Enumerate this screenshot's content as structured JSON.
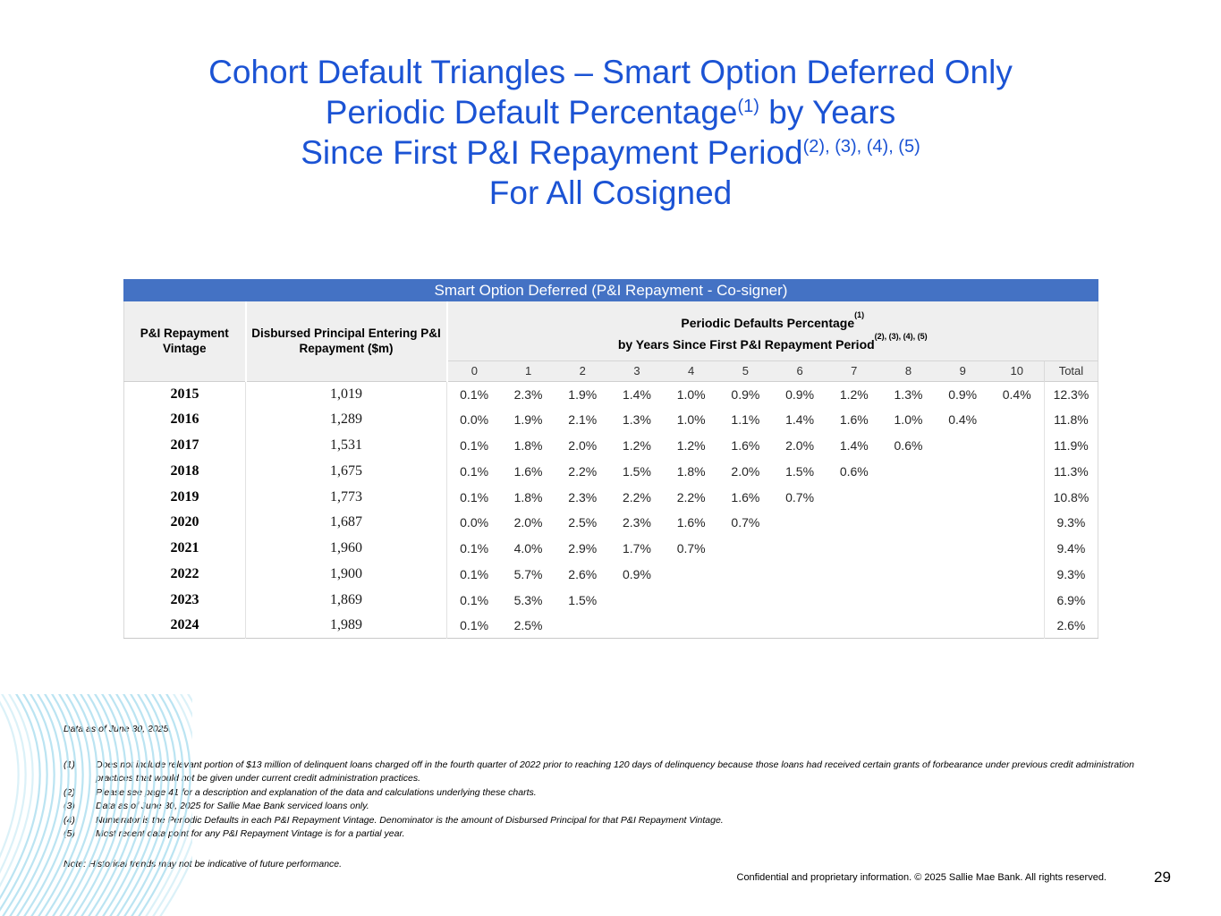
{
  "colors": {
    "title_blue": "#1b53d4",
    "banner_blue": "#4472c4",
    "header_gray": "#efefef",
    "wave_blue": "#afdff0"
  },
  "title": {
    "line1": "Cohort Default Triangles – Smart Option Deferred Only",
    "line2_main": "Periodic Default Percentage",
    "line2_sup": "(1)",
    "line2_tail": " by Years",
    "line3_main": "Since First P&I Repayment Period",
    "line3_sup": "(2), (3), (4), (5)",
    "line4": "For All Cosigned"
  },
  "table": {
    "banner": "Smart Option Deferred (P&I Repayment - Co-signer)",
    "col_vintage_header": "P&I Repayment Vintage",
    "col_principal_header": "Disbursed Principal Entering P&I Repayment ($m)",
    "periodic_header": "Periodic Defaults Percentage",
    "periodic_header_sup": "(1)",
    "periodic_header2": "by Years Since First P&I Repayment Period",
    "periodic_header2_sup": "(2), (3), (4), (5)",
    "year_columns": [
      "0",
      "1",
      "2",
      "3",
      "4",
      "5",
      "6",
      "7",
      "8",
      "9",
      "10"
    ],
    "total_label": "Total",
    "rows": [
      {
        "vintage": "2015",
        "principal": "1,019",
        "values": [
          "0.1%",
          "2.3%",
          "1.9%",
          "1.4%",
          "1.0%",
          "0.9%",
          "0.9%",
          "1.2%",
          "1.3%",
          "0.9%",
          "0.4%"
        ],
        "total": "12.3%"
      },
      {
        "vintage": "2016",
        "principal": "1,289",
        "values": [
          "0.0%",
          "1.9%",
          "2.1%",
          "1.3%",
          "1.0%",
          "1.1%",
          "1.4%",
          "1.6%",
          "1.0%",
          "0.4%"
        ],
        "total": "11.8%"
      },
      {
        "vintage": "2017",
        "principal": "1,531",
        "values": [
          "0.1%",
          "1.8%",
          "2.0%",
          "1.2%",
          "1.2%",
          "1.6%",
          "2.0%",
          "1.4%",
          "0.6%"
        ],
        "total": "11.9%"
      },
      {
        "vintage": "2018",
        "principal": "1,675",
        "values": [
          "0.1%",
          "1.6%",
          "2.2%",
          "1.5%",
          "1.8%",
          "2.0%",
          "1.5%",
          "0.6%"
        ],
        "total": "11.3%"
      },
      {
        "vintage": "2019",
        "principal": "1,773",
        "values": [
          "0.1%",
          "1.8%",
          "2.3%",
          "2.2%",
          "2.2%",
          "1.6%",
          "0.7%"
        ],
        "total": "10.8%"
      },
      {
        "vintage": "2020",
        "principal": "1,687",
        "values": [
          "0.0%",
          "2.0%",
          "2.5%",
          "2.3%",
          "1.6%",
          "0.7%"
        ],
        "total": "9.3%"
      },
      {
        "vintage": "2021",
        "principal": "1,960",
        "values": [
          "0.1%",
          "4.0%",
          "2.9%",
          "1.7%",
          "0.7%"
        ],
        "total": "9.4%"
      },
      {
        "vintage": "2022",
        "principal": "1,900",
        "values": [
          "0.1%",
          "5.7%",
          "2.6%",
          "0.9%"
        ],
        "total": "9.3%"
      },
      {
        "vintage": "2023",
        "principal": "1,869",
        "values": [
          "0.1%",
          "5.3%",
          "1.5%"
        ],
        "total": "6.9%"
      },
      {
        "vintage": "2024",
        "principal": "1,989",
        "values": [
          "0.1%",
          "2.5%"
        ],
        "total": "2.6%"
      }
    ]
  },
  "footnotes": {
    "data_as_of": "Data as of June 30, 2025.",
    "items": [
      {
        "num": "(1)",
        "text": "Does not include relevant portion of $13 million of delinquent loans charged off in the fourth quarter of 2022 prior to reaching 120 days of delinquency because those loans had received certain grants of forbearance under previous credit administration practices that would not be given under current credit administration practices."
      },
      {
        "num": "(2)",
        "text": "Please see page 41 for a description and explanation of the data and calculations underlying these charts."
      },
      {
        "num": "(3)",
        "text": "Data as of June 30, 2025 for Sallie Mae Bank serviced loans only."
      },
      {
        "num": "(4)",
        "text": "Numerator is the Periodic Defaults in each P&I Repayment Vintage. Denominator is the amount of Disbursed Principal for that P&I Repayment Vintage."
      },
      {
        "num": "(5)",
        "text": "Most recent data point for any P&I Repayment Vintage is for a partial year."
      }
    ],
    "note": "Note: Historical trends may not be indicative of future performance."
  },
  "footer": {
    "confidential": "Confidential and proprietary information. © 2025 Sallie Mae Bank. All rights reserved.",
    "page_number": "29"
  }
}
